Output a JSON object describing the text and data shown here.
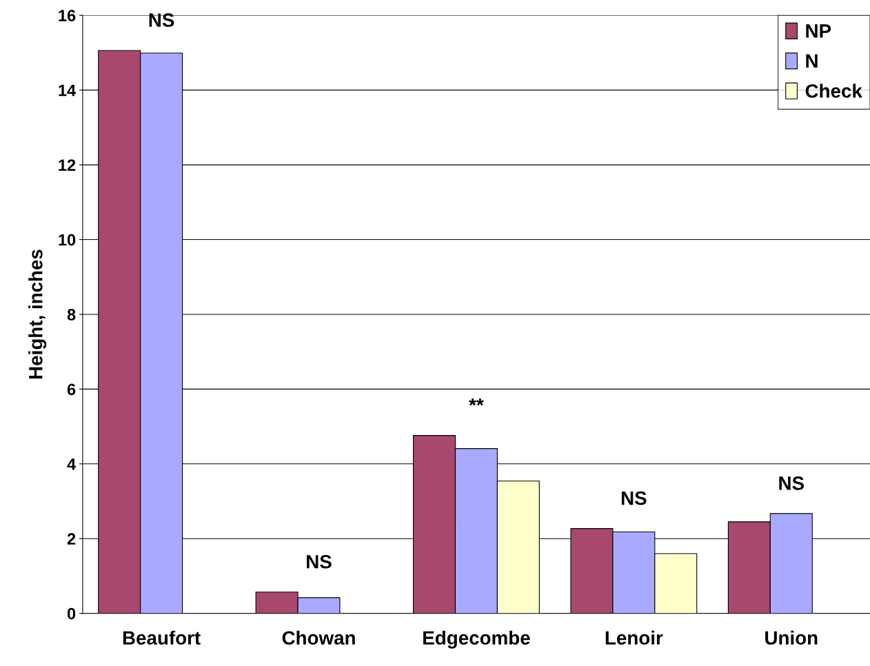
{
  "chart_data": {
    "type": "bar",
    "ylabel": "Height, inches",
    "categories": [
      "Beaufort",
      "Chowan",
      "Edgecombe",
      "Lenoir",
      "Union"
    ],
    "series": [
      {
        "name": "NP",
        "color": "#a8486f",
        "values": [
          15.06,
          0.57,
          4.76,
          2.27,
          2.45
        ]
      },
      {
        "name": "N",
        "color": "#a9aaff",
        "values": [
          14.99,
          0.42,
          4.41,
          2.18,
          2.67
        ]
      },
      {
        "name": "Check",
        "color": "#ffffcc",
        "values": [
          null,
          null,
          3.54,
          1.6,
          null
        ]
      }
    ],
    "ylim": [
      0,
      16
    ],
    "yticks": [
      0,
      2,
      4,
      6,
      8,
      10,
      12,
      14,
      16
    ],
    "grid": "y",
    "legend": "top right",
    "annotations": [
      "NS",
      "NS",
      "**",
      "NS",
      "NS"
    ]
  }
}
